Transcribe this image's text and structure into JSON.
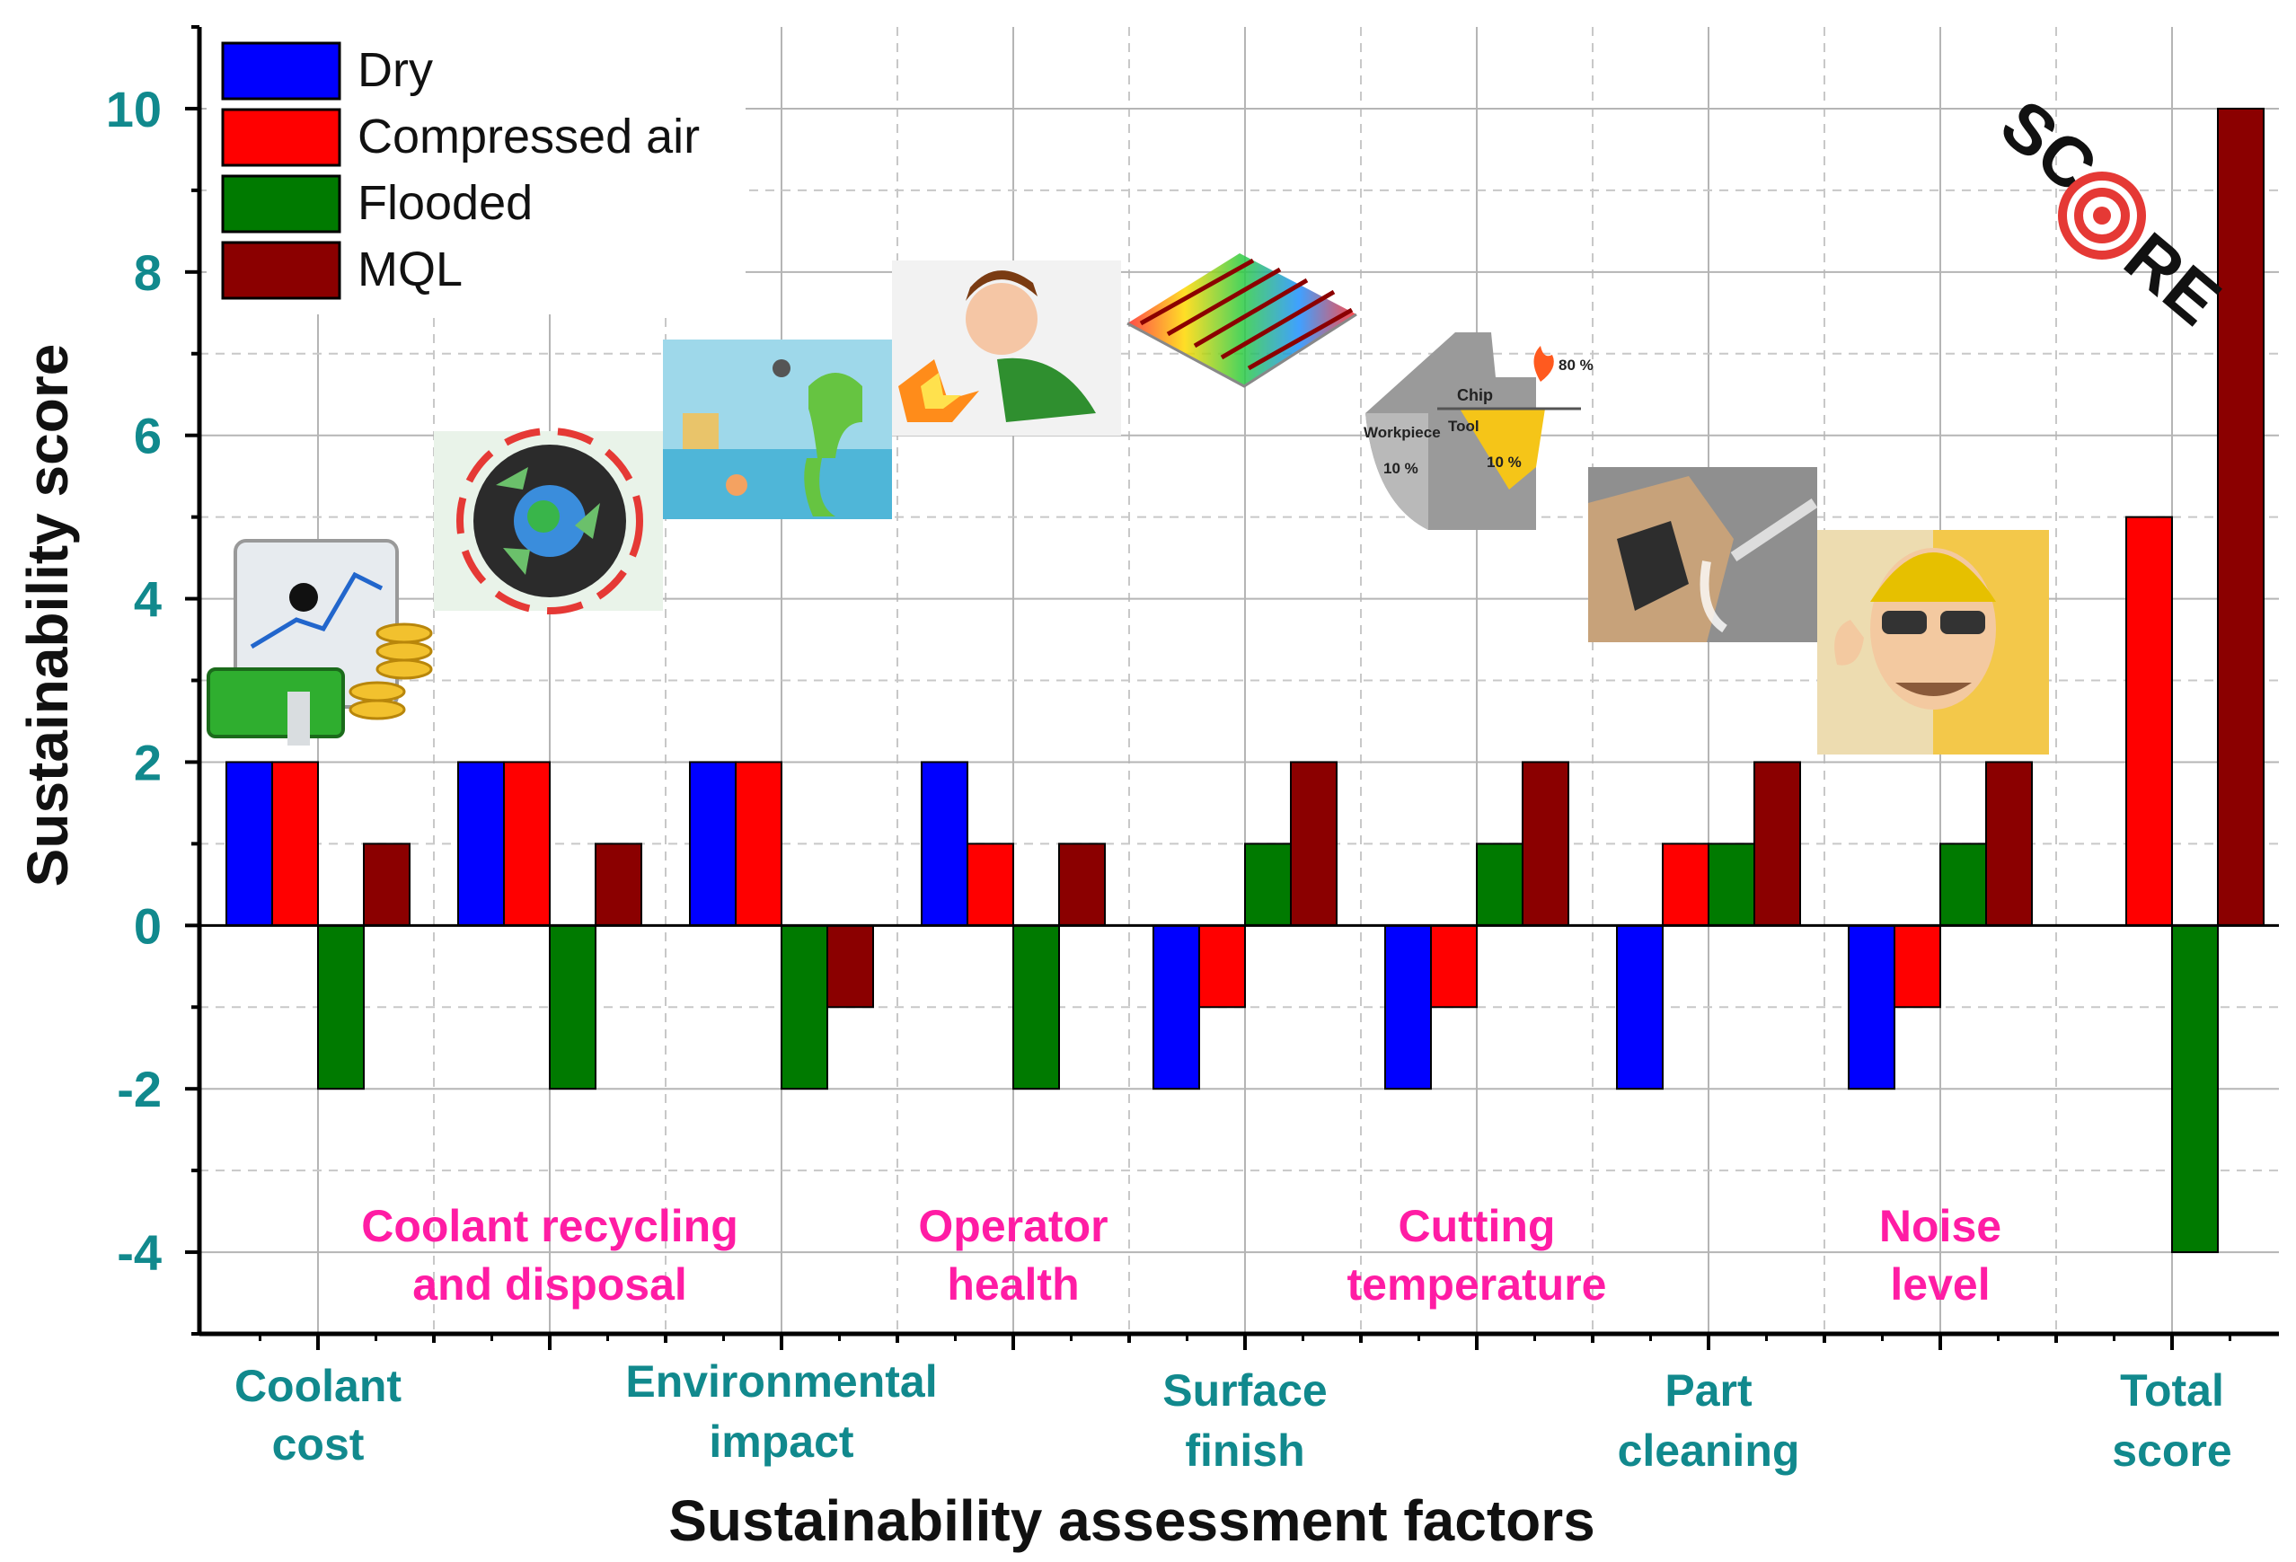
{
  "chart_data": {
    "type": "bar",
    "title": "",
    "xlabel": "Sustainability assessment factors",
    "ylabel": "Sustainability score",
    "ylim": [
      -5,
      11
    ],
    "yticks": [
      "-4",
      "-2",
      "0",
      "2",
      "4",
      "6",
      "8",
      "10"
    ],
    "categories": [
      {
        "line1": "Coolant",
        "line2": "cost",
        "color": "#11898d"
      },
      {
        "line1": "Coolant recycling",
        "line2": "and disposal",
        "color": "#ff1ca4"
      },
      {
        "line1": "Environmental",
        "line2": "impact",
        "color": "#11898d"
      },
      {
        "line1": "Operator",
        "line2": "health",
        "color": "#ff1ca4"
      },
      {
        "line1": "Surface",
        "line2": "finish",
        "color": "#11898d"
      },
      {
        "line1": "Cutting",
        "line2": "temperature",
        "color": "#ff1ca4"
      },
      {
        "line1": "Part",
        "line2": "cleaning",
        "color": "#11898d"
      },
      {
        "line1": "Noise",
        "line2": "level",
        "color": "#ff1ca4"
      },
      {
        "line1": "Total",
        "line2": "score",
        "color": "#11898d"
      }
    ],
    "series": [
      {
        "name": "Dry",
        "color": "#0000ff",
        "values": [
          2,
          2,
          2,
          2,
          -2,
          -2,
          -2,
          -2,
          0
        ]
      },
      {
        "name": "Compressed air",
        "color": "#ff0000",
        "values": [
          2,
          2,
          2,
          1,
          -1,
          -1,
          1,
          -1,
          5
        ]
      },
      {
        "name": "Flooded",
        "color": "#007a00",
        "values": [
          -2,
          -2,
          -2,
          -2,
          1,
          1,
          1,
          1,
          -4
        ]
      },
      {
        "name": "MQL",
        "color": "#8b0000",
        "values": [
          1,
          1,
          -1,
          1,
          2,
          2,
          2,
          2,
          10
        ]
      }
    ],
    "legend": "top-left",
    "grid": true
  },
  "illustrations": {
    "cutting_temperature": {
      "chip": "Chip",
      "tool": "Tool",
      "workpiece": "Workpiece",
      "p80": "80 %",
      "p10a": "10 %",
      "p10b": "10 %"
    },
    "score_logo": {
      "left": "SC",
      "right": "RE"
    }
  }
}
